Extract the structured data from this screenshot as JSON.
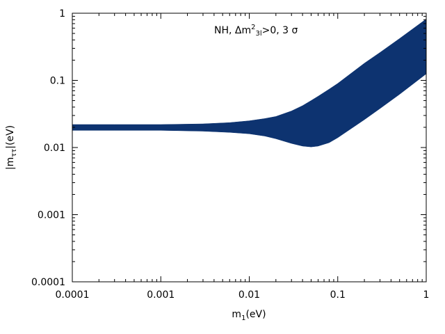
{
  "chart_data": {
    "type": "area",
    "title": "",
    "annotation": {
      "prefix": "NH, Δm",
      "sup": "2",
      "sub": "3l",
      "suffix": ">0, 3 σ"
    },
    "xlabel": {
      "main": "m",
      "sub": "1",
      "rest": "(eV)"
    },
    "ylabel": {
      "main": "|m",
      "sub": "ττ",
      "rest": "|(eV)"
    },
    "xscale": "log",
    "yscale": "log",
    "xlim": [
      0.0001,
      1
    ],
    "ylim": [
      0.0001,
      1
    ],
    "xticks": [
      {
        "value": 0.0001,
        "label": "0.0001"
      },
      {
        "value": 0.001,
        "label": "0.001"
      },
      {
        "value": 0.01,
        "label": "0.01"
      },
      {
        "value": 0.1,
        "label": "0.1"
      },
      {
        "value": 1,
        "label": "1"
      }
    ],
    "yticks": [
      {
        "value": 0.0001,
        "label": "0.0001"
      },
      {
        "value": 0.001,
        "label": "0.001"
      },
      {
        "value": 0.01,
        "label": "0.01"
      },
      {
        "value": 0.1,
        "label": "0.1"
      },
      {
        "value": 1,
        "label": "1"
      }
    ],
    "grid": false,
    "fill_color": "#0d3370",
    "series": [
      {
        "x": [
          0.0001,
          0.0003,
          0.001,
          0.003,
          0.006,
          0.01,
          0.015,
          0.02,
          0.03,
          0.04,
          0.05,
          0.06,
          0.08,
          0.1,
          0.2,
          0.3,
          0.5,
          1
        ],
        "upper": [
          0.022,
          0.022,
          0.022,
          0.0225,
          0.0235,
          0.025,
          0.027,
          0.029,
          0.035,
          0.042,
          0.05,
          0.058,
          0.074,
          0.09,
          0.18,
          0.26,
          0.42,
          0.82
        ],
        "lower": [
          0.018,
          0.018,
          0.018,
          0.0175,
          0.0168,
          0.016,
          0.0148,
          0.0135,
          0.0115,
          0.0105,
          0.0102,
          0.0105,
          0.0118,
          0.014,
          0.026,
          0.038,
          0.062,
          0.125
        ]
      }
    ]
  }
}
